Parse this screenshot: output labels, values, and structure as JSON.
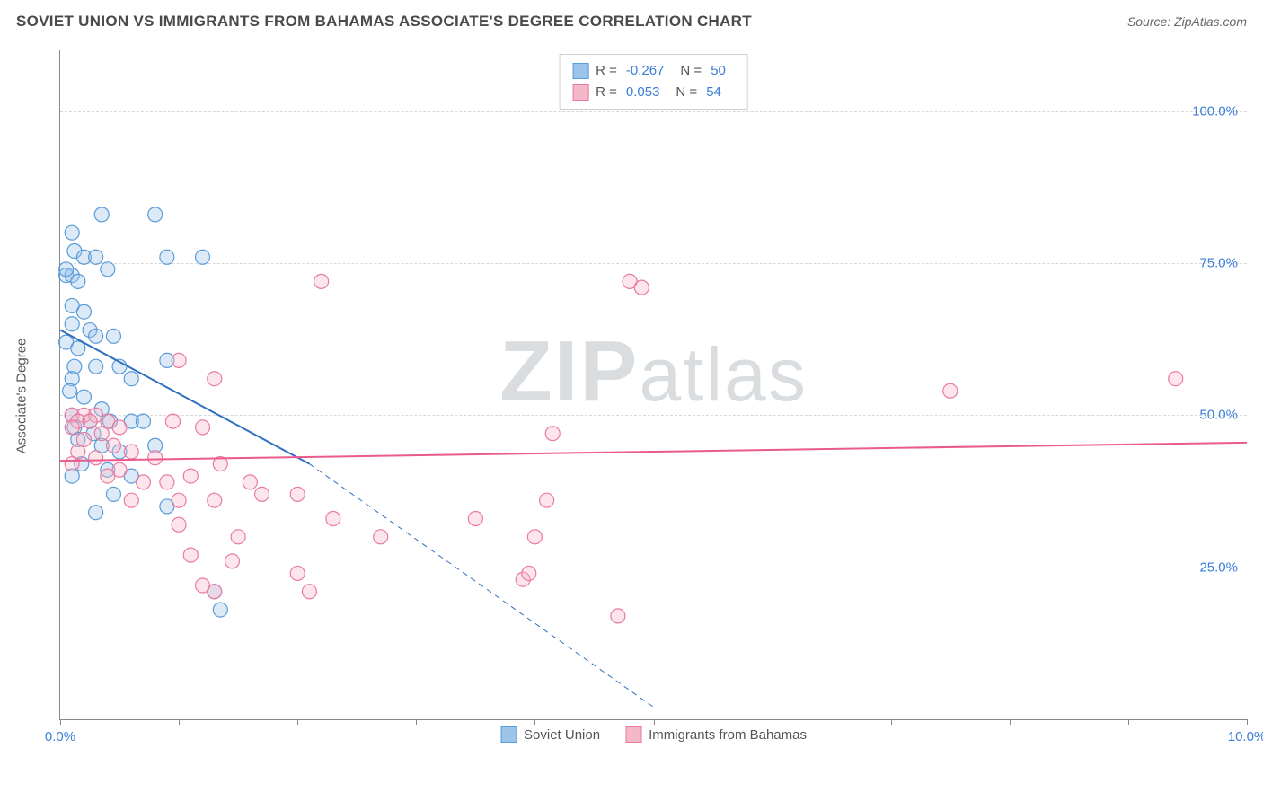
{
  "header": {
    "title": "SOVIET UNION VS IMMIGRANTS FROM BAHAMAS ASSOCIATE'S DEGREE CORRELATION CHART",
    "source_prefix": "Source: ",
    "source_name": "ZipAtlas.com"
  },
  "watermark": {
    "text_bold": "ZIP",
    "text_rest": "atlas"
  },
  "chart": {
    "type": "scatter",
    "y_axis_label": "Associate's Degree",
    "xlim": [
      0,
      10
    ],
    "ylim": [
      0,
      110
    ],
    "x_ticks": [
      0,
      1,
      2,
      3,
      4,
      5,
      6,
      7,
      8,
      9,
      10
    ],
    "x_tick_labels_shown": {
      "0": "0.0%",
      "10": "10.0%"
    },
    "y_ticks": [
      25,
      50,
      75,
      100
    ],
    "y_tick_labels": {
      "25": "25.0%",
      "50": "50.0%",
      "75": "75.0%",
      "100": "100.0%"
    },
    "grid_color": "#d8d8d8",
    "axis_color": "#888888",
    "background_color": "#ffffff",
    "label_color": "#3b7dd8",
    "series": [
      {
        "id": "soviet",
        "name": "Soviet Union",
        "color_fill": "#9cc3ea",
        "color_stroke": "#5a9bd8",
        "marker_radius": 8,
        "R": "-0.267",
        "N": "50",
        "trend": {
          "x1": 0,
          "y1": 64,
          "x2": 2.1,
          "y2": 42,
          "dash_x2": 5.0,
          "dash_y2": 2,
          "stroke": "#2f6fc2",
          "width": 2
        },
        "points": [
          [
            0.05,
            73
          ],
          [
            0.1,
            73
          ],
          [
            0.35,
            83
          ],
          [
            0.8,
            83
          ],
          [
            0.1,
            80
          ],
          [
            0.12,
            77
          ],
          [
            0.2,
            76
          ],
          [
            0.3,
            76
          ],
          [
            0.05,
            74
          ],
          [
            0.15,
            72
          ],
          [
            0.4,
            74
          ],
          [
            0.9,
            76
          ],
          [
            1.2,
            76
          ],
          [
            0.1,
            68
          ],
          [
            0.2,
            67
          ],
          [
            0.1,
            65
          ],
          [
            0.25,
            64
          ],
          [
            0.3,
            63
          ],
          [
            0.05,
            62
          ],
          [
            0.15,
            61
          ],
          [
            0.45,
            63
          ],
          [
            0.12,
            58
          ],
          [
            0.3,
            58
          ],
          [
            0.1,
            56
          ],
          [
            0.5,
            58
          ],
          [
            0.6,
            56
          ],
          [
            0.08,
            54
          ],
          [
            0.2,
            53
          ],
          [
            0.35,
            51
          ],
          [
            0.1,
            50
          ],
          [
            0.25,
            49
          ],
          [
            0.42,
            49
          ],
          [
            0.6,
            49
          ],
          [
            0.7,
            49
          ],
          [
            0.9,
            59
          ],
          [
            0.12,
            48
          ],
          [
            0.28,
            47
          ],
          [
            0.15,
            46
          ],
          [
            0.35,
            45
          ],
          [
            0.5,
            44
          ],
          [
            0.8,
            45
          ],
          [
            0.18,
            42
          ],
          [
            0.4,
            41
          ],
          [
            0.1,
            40
          ],
          [
            0.6,
            40
          ],
          [
            0.3,
            34
          ],
          [
            0.9,
            35
          ],
          [
            1.3,
            21
          ],
          [
            1.35,
            18
          ],
          [
            0.45,
            37
          ]
        ]
      },
      {
        "id": "bahamas",
        "name": "Immigrants from Bahamas",
        "color_fill": "#f5b8c8",
        "color_stroke": "#ea7aa0",
        "marker_radius": 8,
        "R": "0.053",
        "N": "54",
        "trend": {
          "x1": 0,
          "y1": 42.5,
          "x2": 10,
          "y2": 45.5,
          "stroke": "#ea5a8a",
          "width": 2
        },
        "points": [
          [
            0.1,
            50
          ],
          [
            0.2,
            50
          ],
          [
            0.3,
            50
          ],
          [
            0.15,
            49
          ],
          [
            0.25,
            49
          ],
          [
            0.4,
            49
          ],
          [
            0.1,
            48
          ],
          [
            0.35,
            47
          ],
          [
            0.5,
            48
          ],
          [
            0.2,
            46
          ],
          [
            0.45,
            45
          ],
          [
            0.15,
            44
          ],
          [
            0.6,
            44
          ],
          [
            0.3,
            43
          ],
          [
            0.8,
            43
          ],
          [
            0.1,
            42
          ],
          [
            0.5,
            41
          ],
          [
            0.4,
            40
          ],
          [
            0.7,
            39
          ],
          [
            0.9,
            39
          ],
          [
            1.1,
            40
          ],
          [
            1.2,
            48
          ],
          [
            1.35,
            42
          ],
          [
            0.95,
            49
          ],
          [
            1.6,
            39
          ],
          [
            0.6,
            36
          ],
          [
            1.0,
            36
          ],
          [
            1.3,
            36
          ],
          [
            1.7,
            37
          ],
          [
            2.0,
            37
          ],
          [
            1.0,
            32
          ],
          [
            1.5,
            30
          ],
          [
            1.1,
            27
          ],
          [
            1.45,
            26
          ],
          [
            2.3,
            33
          ],
          [
            2.7,
            30
          ],
          [
            2.0,
            24
          ],
          [
            1.2,
            22
          ],
          [
            1.3,
            21
          ],
          [
            2.1,
            21
          ],
          [
            3.5,
            33
          ],
          [
            3.9,
            23
          ],
          [
            4.0,
            30
          ],
          [
            3.95,
            24
          ],
          [
            4.7,
            17
          ],
          [
            4.15,
            47
          ],
          [
            4.8,
            72
          ],
          [
            4.9,
            71
          ],
          [
            4.1,
            36
          ],
          [
            7.5,
            54
          ],
          [
            9.4,
            56
          ],
          [
            2.2,
            72
          ],
          [
            1.3,
            56
          ],
          [
            1.0,
            59
          ]
        ]
      }
    ]
  }
}
